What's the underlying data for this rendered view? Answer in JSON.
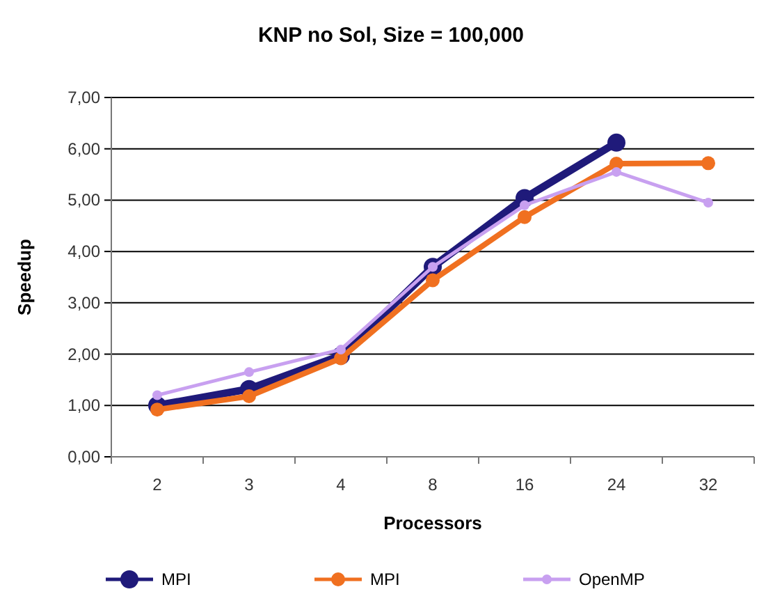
{
  "chart_data": {
    "type": "line",
    "title": "KNP no Sol,   Size = 100,000",
    "xlabel": "Processors",
    "ylabel": "Speedup",
    "categories": [
      "2",
      "3",
      "4",
      "8",
      "16",
      "24",
      "32"
    ],
    "series": [
      {
        "name": "MPI",
        "color": "#1f1a7a",
        "values": [
          1.0,
          1.32,
          1.97,
          3.7,
          5.04,
          6.12,
          null
        ]
      },
      {
        "name": "MPI",
        "color": "#f07020",
        "values": [
          0.92,
          1.18,
          1.92,
          3.44,
          4.67,
          5.71,
          5.72
        ]
      },
      {
        "name": "OpenMP",
        "color": "#c8a0f0",
        "values": [
          1.2,
          1.65,
          2.09,
          3.7,
          4.9,
          5.55,
          4.95
        ]
      }
    ],
    "ylim": [
      0,
      7
    ],
    "yticks": [
      {
        "value": 0,
        "label": "0,00"
      },
      {
        "value": 1,
        "label": "1,00"
      },
      {
        "value": 2,
        "label": "2,00"
      },
      {
        "value": 3,
        "label": "3,00"
      },
      {
        "value": 4,
        "label": "4,00"
      },
      {
        "value": 5,
        "label": "5,00"
      },
      {
        "value": 6,
        "label": "6,00"
      },
      {
        "value": 7,
        "label": "7,00"
      }
    ],
    "grid": "y",
    "legend": "bottom",
    "marker": "circle",
    "line_style": "solid"
  }
}
